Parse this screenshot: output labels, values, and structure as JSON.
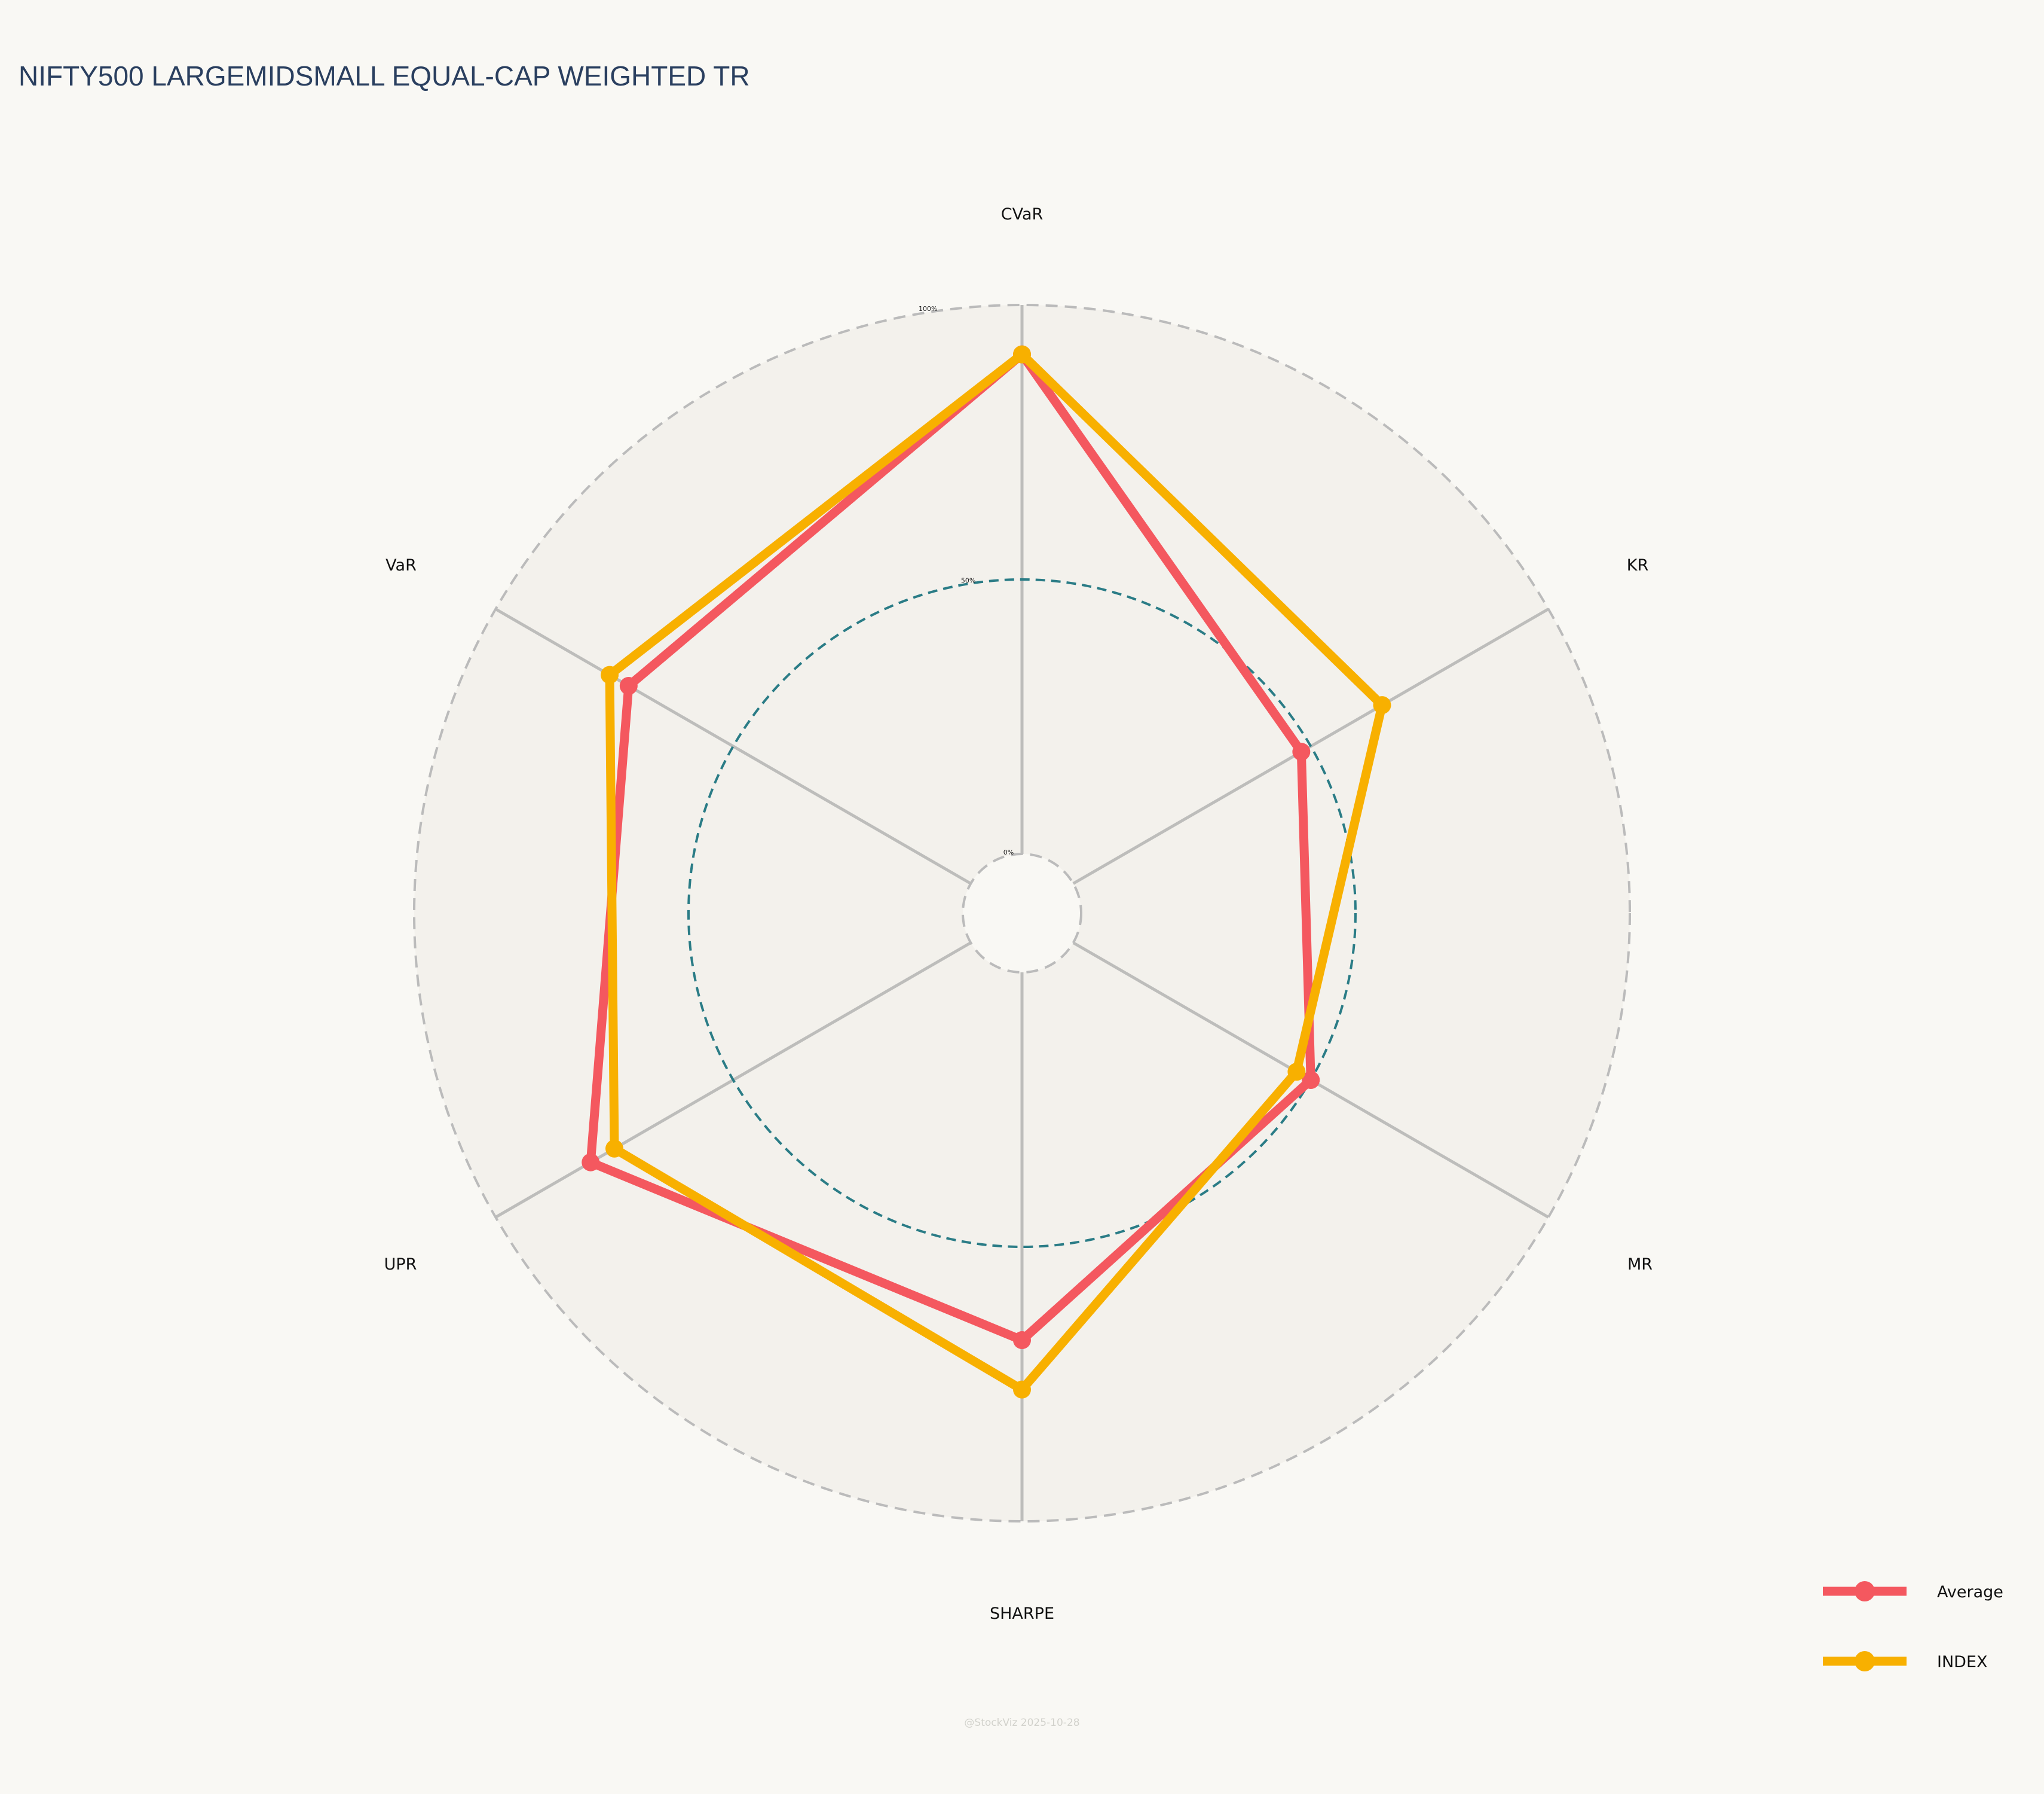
{
  "chart_data": {
    "type": "radar",
    "title": "NIFTY500 LARGEMIDSMALL EQUAL-CAP WEIGHTED TR",
    "axes": [
      "CVaR",
      "KR",
      "MR",
      "SHARPE",
      "UPR",
      "VaR"
    ],
    "radial_ticks": [
      {
        "value": 0,
        "label": "0%"
      },
      {
        "value": 50,
        "label": "50%"
      },
      {
        "value": 100,
        "label": "100%"
      }
    ],
    "range": [
      0,
      100
    ],
    "series": [
      {
        "name": "Average",
        "color": "#f4585f",
        "values": [
          91,
          48,
          50,
          67,
          80,
          72
        ]
      },
      {
        "name": "INDEX",
        "color": "#f8b000",
        "values": [
          91,
          65,
          47,
          76,
          75,
          76
        ]
      }
    ],
    "legend_position": "bottom-right",
    "watermark": "@StockViz 2025-10-28"
  }
}
